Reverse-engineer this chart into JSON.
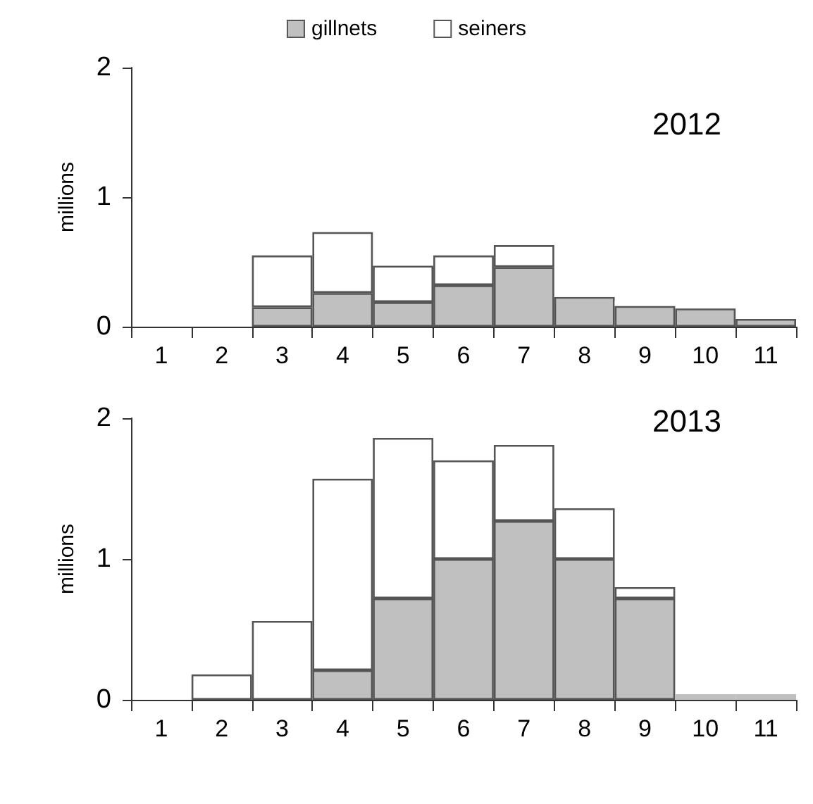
{
  "chart_data": [
    {
      "type": "bar",
      "title": "2012",
      "ylabel": "millions",
      "categories": [
        "1",
        "2",
        "3",
        "4",
        "5",
        "6",
        "7",
        "8",
        "9",
        "10",
        "11"
      ],
      "stacked": true,
      "legend": "top",
      "grid": false,
      "ylim": [
        0,
        2
      ],
      "yticks": [
        0,
        1,
        2
      ],
      "series": [
        {
          "name": "gillnets",
          "color": "#c0c0c0",
          "values": [
            0,
            null,
            0.15,
            0.26,
            0.19,
            0.32,
            0.46,
            0.23,
            0.16,
            0.14,
            0.06
          ]
        },
        {
          "name": "seiners",
          "color": "#ffffff",
          "values": [
            0,
            0,
            0.4,
            0.47,
            0.28,
            0.23,
            0.17,
            0.01,
            0.04,
            0,
            null
          ]
        }
      ]
    },
    {
      "type": "bar",
      "title": "2013",
      "ylabel": "millions",
      "categories": [
        "1",
        "2",
        "3",
        "4",
        "5",
        "6",
        "7",
        "8",
        "9",
        "10",
        "11"
      ],
      "stacked": true,
      "legend": false,
      "grid": false,
      "ylim": [
        0,
        2
      ],
      "yticks": [
        0,
        1,
        2
      ],
      "series": [
        {
          "color": "#c0c0c0",
          "values": [
            null,
            0,
            0,
            0.21,
            0.72,
            1.0,
            1.27,
            1.0,
            0.72,
            0.04,
            0.04
          ]
        },
        {
          "color": "#ffffff",
          "values": [
            0,
            0.18,
            0.56,
            1.36,
            1.14,
            0.7,
            0.54,
            0.36,
            0.08,
            0,
            0.01
          ]
        }
      ]
    }
  ]
}
